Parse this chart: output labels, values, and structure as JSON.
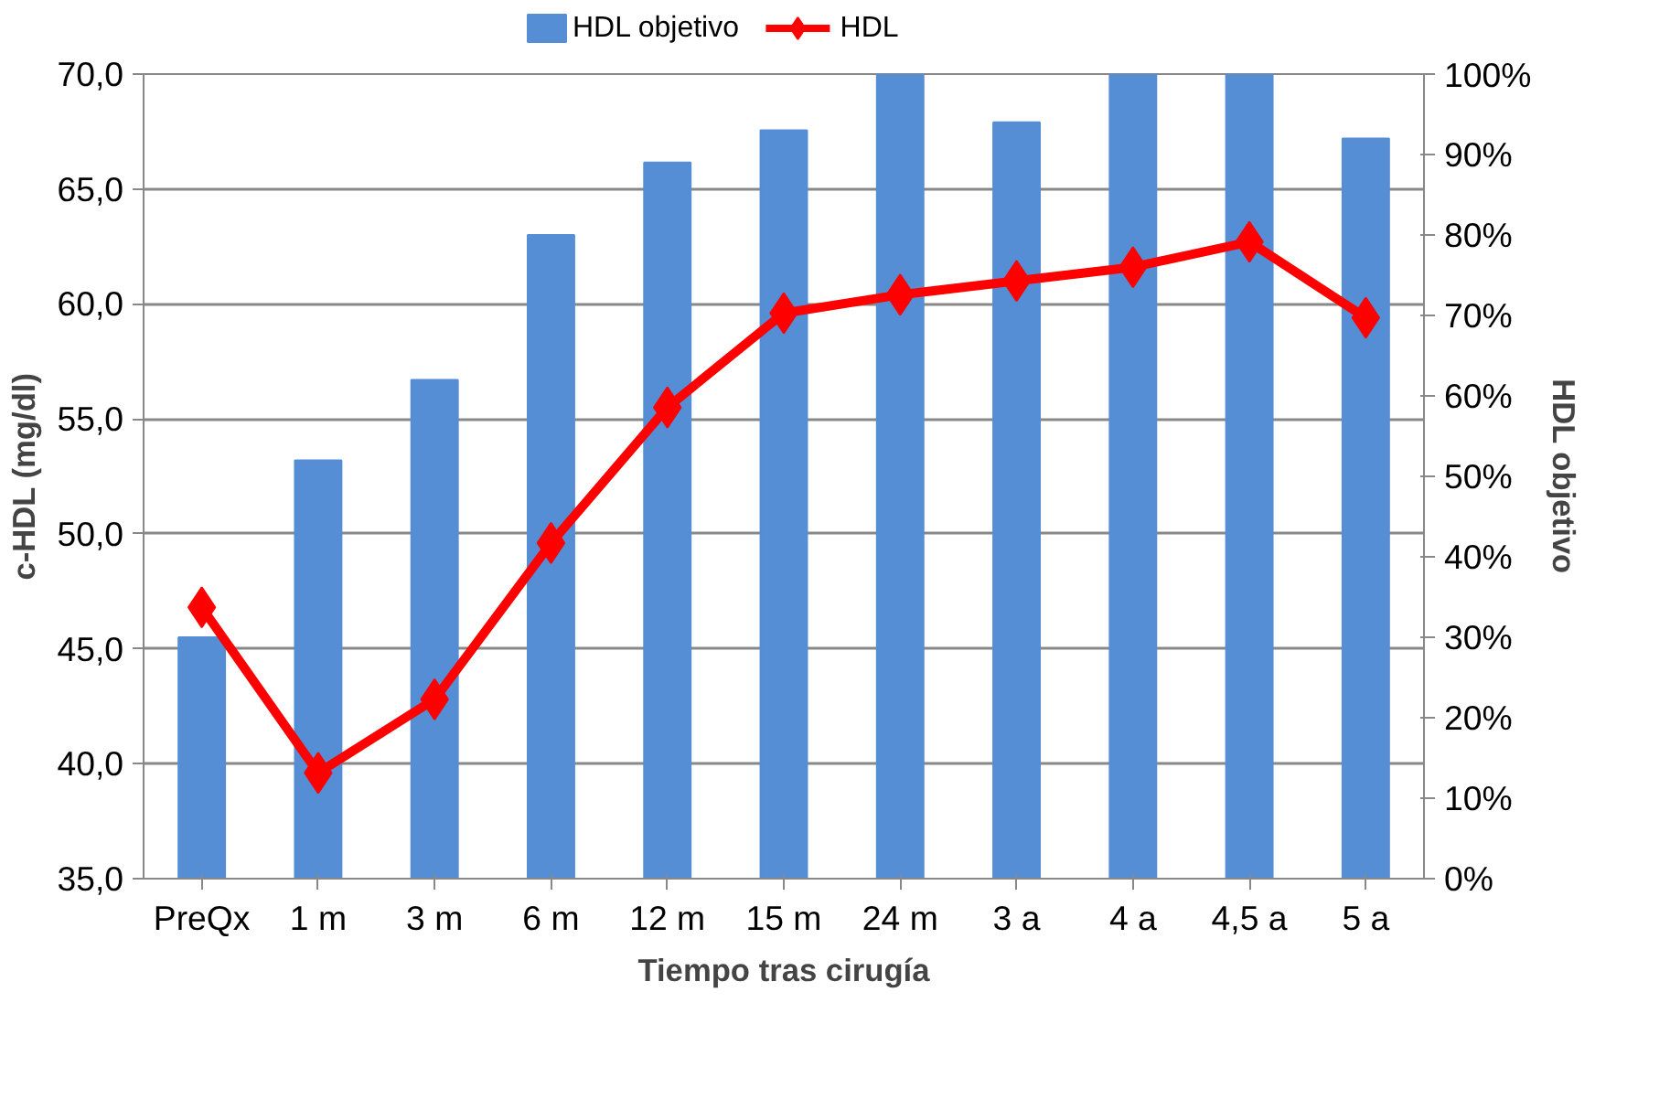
{
  "chart_data": {
    "type": "bar",
    "categories": [
      "PreQx",
      "1 m",
      "3 m",
      "6 m",
      "12 m",
      "15 m",
      "24 m",
      "3 a",
      "4 a",
      "4,5 a",
      "5 a"
    ],
    "series": [
      {
        "name": "HDL objetivo",
        "axis": "y2",
        "color": "#558ed5",
        "values": [
          30,
          52,
          62,
          80,
          89,
          93,
          100,
          94,
          100,
          100,
          92
        ]
      },
      {
        "name": "HDL",
        "type": "line",
        "color": "#ff0000",
        "marker": "diamond",
        "values": [
          46.8,
          39.6,
          42.8,
          49.6,
          55.5,
          59.6,
          60.4,
          61.0,
          61.6,
          62.7,
          59.4
        ]
      }
    ],
    "xlabel": "Tiempo tras cirugía",
    "ylabel": "c-HDL (mg/dl)",
    "y2label": "HDL objetivo",
    "ylim": [
      35,
      70
    ],
    "yticks": [
      {
        "value": 35,
        "label": "35,0"
      },
      {
        "value": 40,
        "label": "40,0"
      },
      {
        "value": 45,
        "label": "45,0"
      },
      {
        "value": 50,
        "label": "50,0"
      },
      {
        "value": 55,
        "label": "55,0"
      },
      {
        "value": 60,
        "label": "60,0"
      },
      {
        "value": 65,
        "label": "65,0"
      },
      {
        "value": 70,
        "label": "70,0"
      }
    ],
    "y2lim": [
      0,
      100
    ],
    "y2ticks": [
      {
        "value": 0,
        "label": "0%"
      },
      {
        "value": 10,
        "label": "10%"
      },
      {
        "value": 20,
        "label": "20%"
      },
      {
        "value": 30,
        "label": "30%"
      },
      {
        "value": 40,
        "label": "40%"
      },
      {
        "value": 50,
        "label": "50%"
      },
      {
        "value": 60,
        "label": "60%"
      },
      {
        "value": 70,
        "label": "70%"
      },
      {
        "value": 80,
        "label": "80%"
      },
      {
        "value": 90,
        "label": "90%"
      },
      {
        "value": 100,
        "label": "100%"
      }
    ],
    "grid": "y",
    "legend": "top"
  }
}
